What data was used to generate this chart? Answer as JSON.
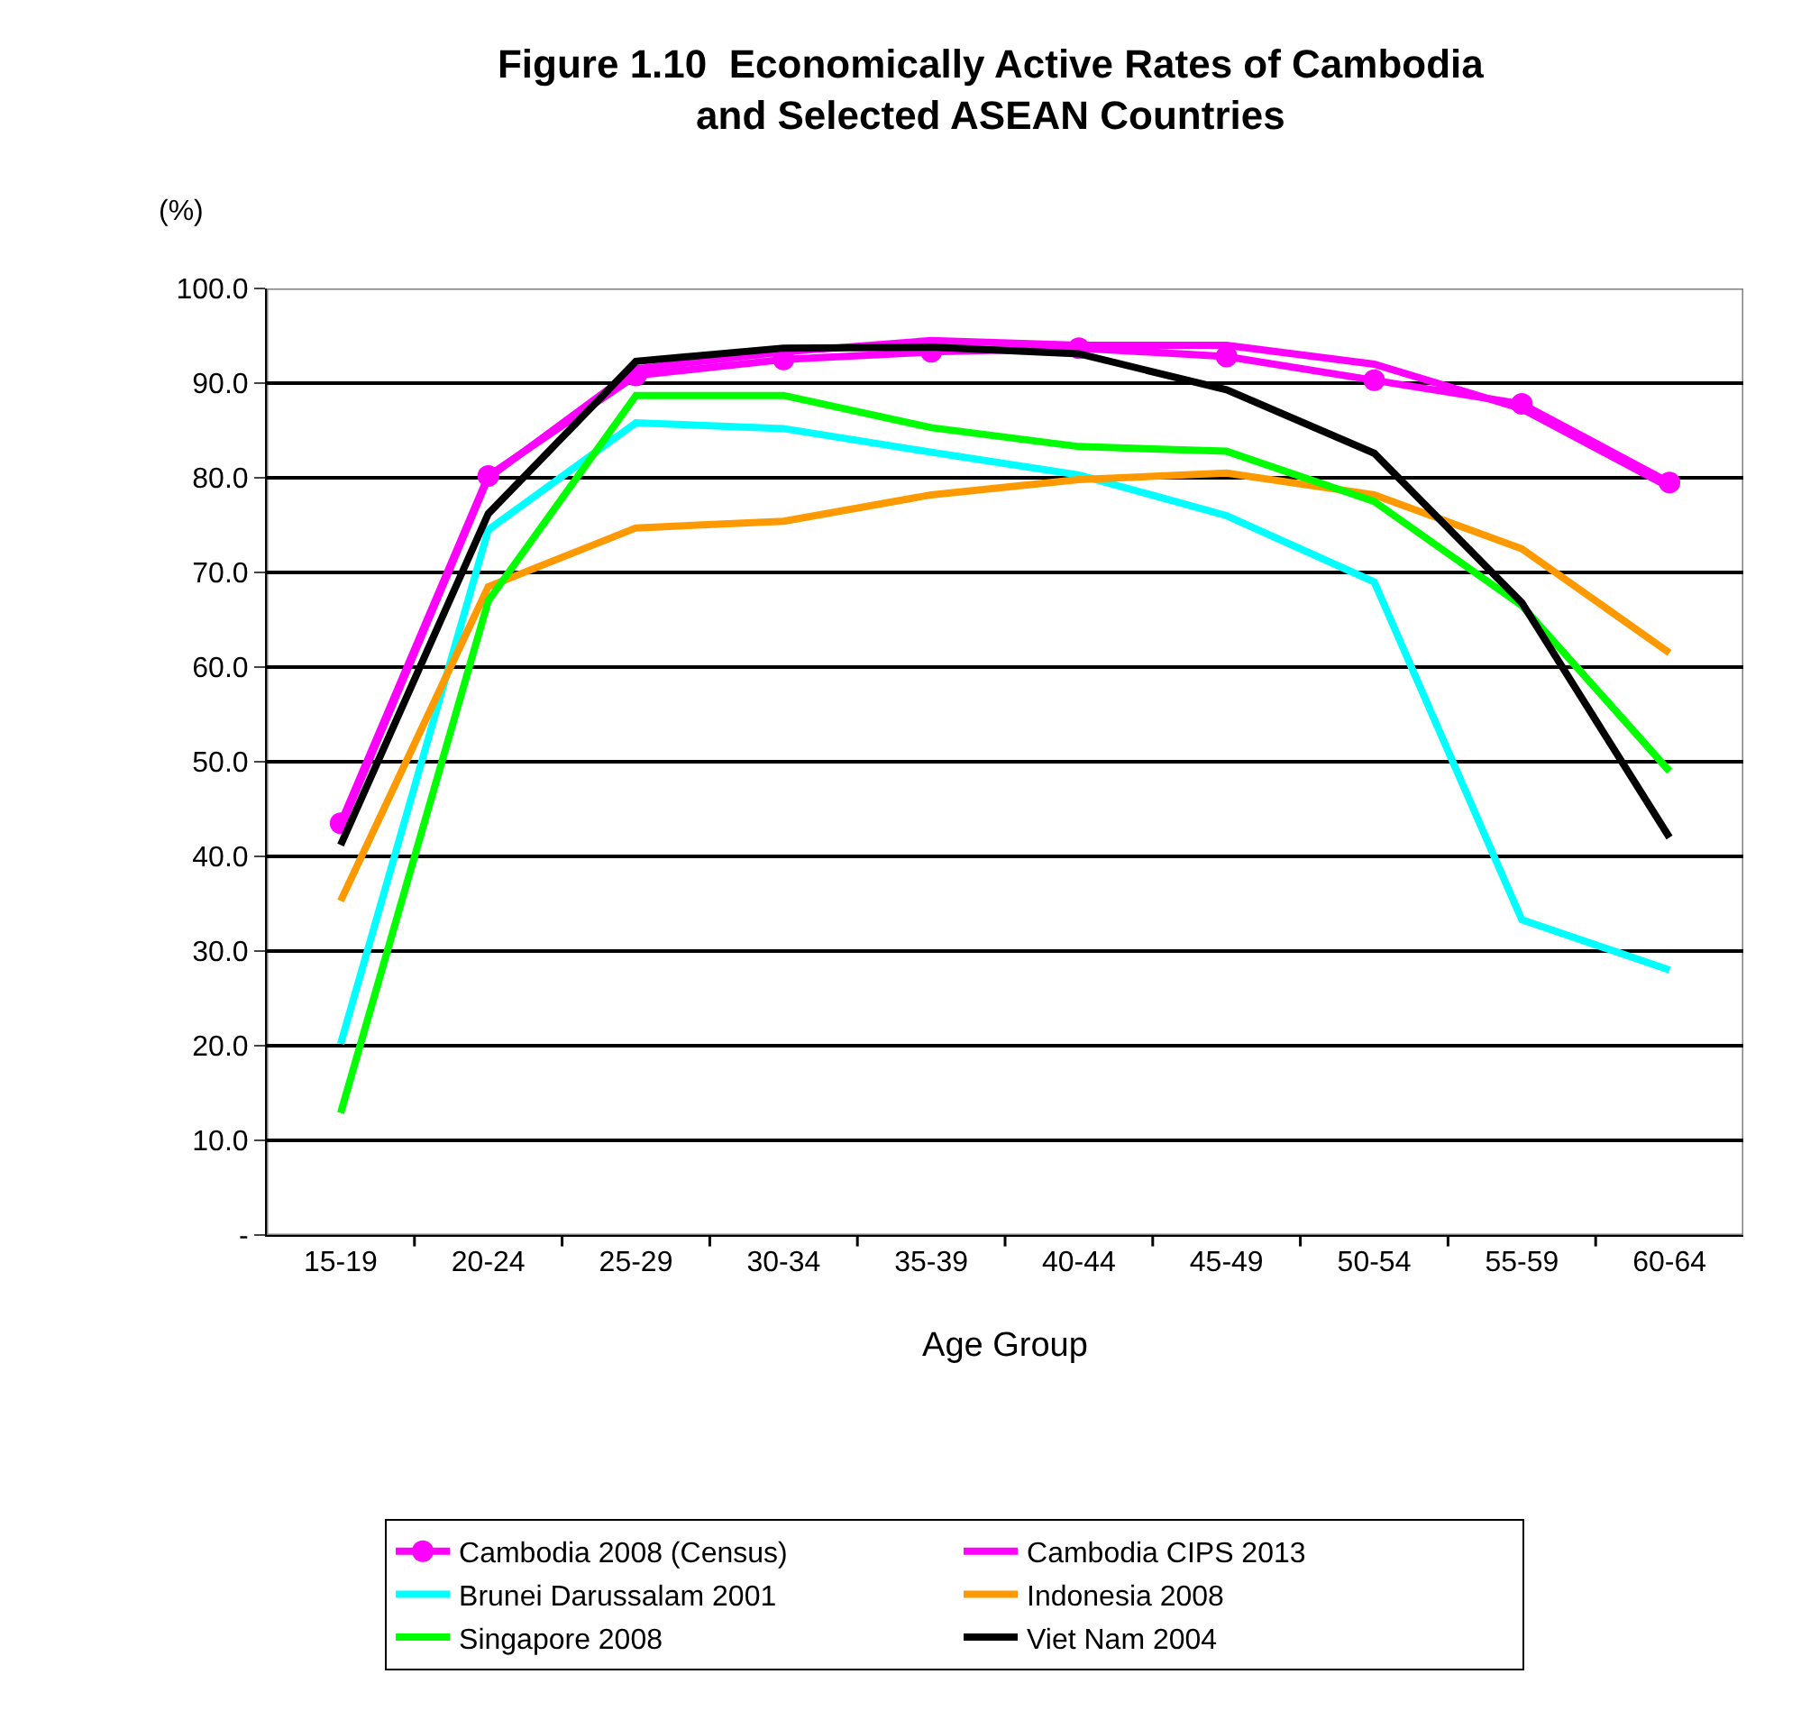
{
  "chart_data": {
    "type": "line",
    "title": "Figure 1.10  Economically Active Rates of Cambodia\nand Selected ASEAN Countries",
    "xlabel": "Age Group",
    "ylabel": "(%)",
    "categories": [
      "15-19",
      "20-24",
      "25-29",
      "30-34",
      "35-39",
      "40-44",
      "45-49",
      "50-54",
      "55-59",
      "60-64"
    ],
    "series": [
      {
        "name": "Cambodia 2008 (Census)",
        "color": "#ff00ff",
        "marker": "circle",
        "values": [
          43.5,
          80.2,
          90.8,
          92.5,
          93.3,
          93.7,
          92.8,
          90.3,
          87.8,
          79.5
        ]
      },
      {
        "name": "Cambodia CIPS 2013",
        "color": "#ff00ff",
        "values": [
          43.0,
          80.0,
          91.5,
          93.3,
          94.5,
          94.0,
          94.0,
          92.0,
          87.3,
          79.0
        ]
      },
      {
        "name": "Brunei Darussalam 2001",
        "color": "#00ffff",
        "values": [
          20.2,
          74.5,
          85.8,
          85.2,
          82.7,
          80.3,
          76.0,
          69.0,
          33.3,
          28.0
        ]
      },
      {
        "name": "Indonesia 2008",
        "color": "#ff9900",
        "values": [
          35.3,
          68.5,
          74.7,
          75.4,
          78.2,
          79.8,
          80.5,
          78.2,
          72.5,
          61.5
        ]
      },
      {
        "name": "Singapore 2008",
        "color": "#00ff00",
        "values": [
          12.9,
          67.0,
          88.7,
          88.7,
          85.3,
          83.3,
          82.8,
          77.5,
          66.5,
          49.0
        ]
      },
      {
        "name": "Viet Nam 2004",
        "color": "#000000",
        "values": [
          41.2,
          76.2,
          92.3,
          93.7,
          93.8,
          93.1,
          89.3,
          82.6,
          66.8,
          42.0
        ]
      }
    ],
    "ylim": [
      0,
      100
    ],
    "yticks": [
      {
        "value": 0,
        "label": "-"
      },
      {
        "value": 10,
        "label": "10.0"
      },
      {
        "value": 20,
        "label": "20.0"
      },
      {
        "value": 30,
        "label": "30.0"
      },
      {
        "value": 40,
        "label": "40.0"
      },
      {
        "value": 50,
        "label": "50.0"
      },
      {
        "value": 60,
        "label": "60.0"
      },
      {
        "value": 70,
        "label": "70.0"
      },
      {
        "value": 80,
        "label": "80.0"
      },
      {
        "value": 90,
        "label": "90.0"
      },
      {
        "value": 100,
        "label": "100.0"
      }
    ],
    "grid": "y",
    "legend": "bottom",
    "marker": "none",
    "line_style": "solid"
  }
}
